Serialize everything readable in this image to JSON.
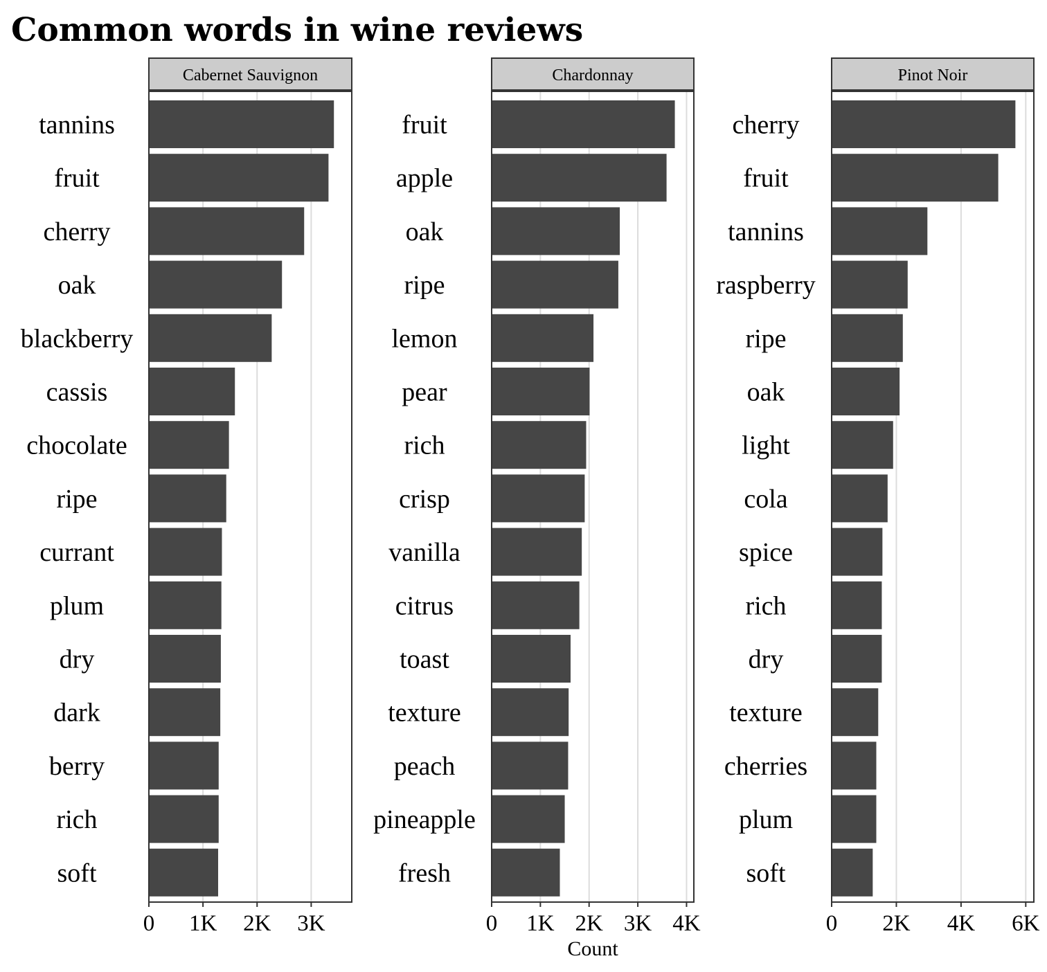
{
  "chart_data": {
    "type": "bar",
    "orientation": "horizontal",
    "faceted": true,
    "title": "Common words in wine reviews",
    "xlabel": "Count",
    "ylabel": "",
    "grid": "vertical",
    "colors": {
      "bar": "#464646",
      "strip_fill": "#cccccc",
      "grid": "#dcdcdc",
      "frame": "#333333"
    },
    "facets": [
      {
        "name": "Cabernet Sauvignon",
        "xlim": [
          0,
          3750
        ],
        "ticks": [
          0,
          1000,
          2000,
          3000
        ],
        "tick_labels": [
          "0",
          "1K",
          "2K",
          "3K"
        ],
        "categories": [
          "tannins",
          "fruit",
          "cherry",
          "oak",
          "blackberry",
          "cassis",
          "chocolate",
          "ripe",
          "currant",
          "plum",
          "dry",
          "dark",
          "berry",
          "rich",
          "soft"
        ],
        "values": [
          3420,
          3320,
          2870,
          2460,
          2270,
          1590,
          1480,
          1430,
          1350,
          1340,
          1330,
          1320,
          1290,
          1290,
          1280
        ]
      },
      {
        "name": "Chardonnay",
        "xlim": [
          0,
          4150
        ],
        "ticks": [
          0,
          1000,
          2000,
          3000,
          4000
        ],
        "tick_labels": [
          "0",
          "1K",
          "2K",
          "3K",
          "4K"
        ],
        "categories": [
          "fruit",
          "apple",
          "oak",
          "ripe",
          "lemon",
          "pear",
          "rich",
          "crisp",
          "vanilla",
          "citrus",
          "toast",
          "texture",
          "peach",
          "pineapple",
          "fresh"
        ],
        "values": [
          3760,
          3590,
          2630,
          2600,
          2090,
          2010,
          1940,
          1910,
          1850,
          1800,
          1620,
          1580,
          1570,
          1500,
          1400
        ]
      },
      {
        "name": "Pinot Noir",
        "xlim": [
          0,
          6250
        ],
        "ticks": [
          0,
          2000,
          4000,
          6000
        ],
        "tick_labels": [
          "0",
          "2K",
          "4K",
          "6K"
        ],
        "categories": [
          "cherry",
          "fruit",
          "tannins",
          "raspberry",
          "ripe",
          "oak",
          "light",
          "cola",
          "spice",
          "rich",
          "dry",
          "texture",
          "cherries",
          "plum",
          "soft"
        ],
        "values": [
          5680,
          5150,
          2960,
          2350,
          2200,
          2100,
          1900,
          1730,
          1570,
          1550,
          1550,
          1440,
          1380,
          1380,
          1270
        ]
      }
    ]
  }
}
